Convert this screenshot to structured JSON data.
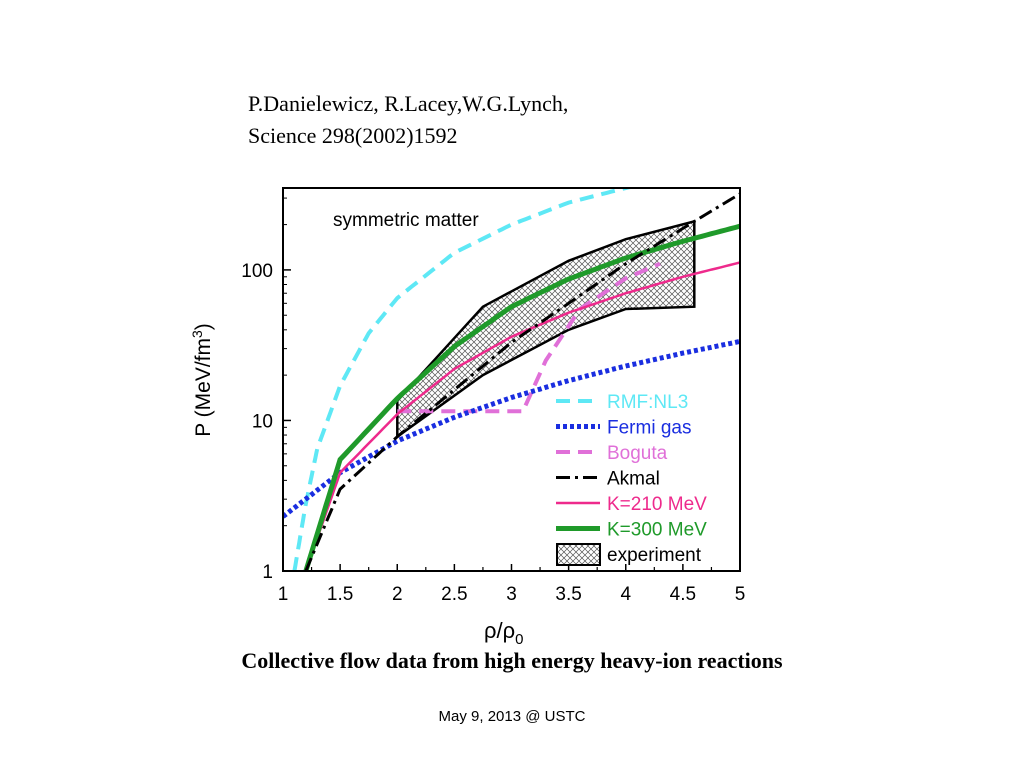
{
  "slide": {
    "citation_line1": "P.Danielewicz, R.Lacey,W.G.Lynch,",
    "citation_line2": "Science 298(2002)1592",
    "caption": "Collective flow data from high energy heavy-ion reactions",
    "footer": "May 9, 2013 @ USTC"
  },
  "chart_data": {
    "type": "line",
    "annotation": "symmetric matter",
    "xlabel_base": "ρ/ρ",
    "xlabel_sub": "0",
    "ylabel": "P (MeV/fm",
    "ylabel_sup": "3",
    "ylabel_close": ")",
    "xlim": [
      1,
      5
    ],
    "ylim": [
      1,
      350
    ],
    "yscale": "log",
    "xticks": [
      "1",
      "1.5",
      "2",
      "2.5",
      "3",
      "3.5",
      "4",
      "4.5",
      "5"
    ],
    "yticks": [
      {
        "value": 1,
        "label": "1"
      },
      {
        "value": 10,
        "label": "10"
      },
      {
        "value": 100,
        "label": "100"
      }
    ],
    "legend_position": "lower-right",
    "series": [
      {
        "name": "RMF:NL3",
        "color": "#5ee8f5",
        "style": "dashed",
        "x": [
          1.1,
          1.2,
          1.3,
          1.5,
          1.75,
          2.0,
          2.5,
          3.0,
          3.5,
          4.0,
          4.2
        ],
        "y": [
          1.0,
          2.8,
          6.5,
          17,
          38,
          65,
          130,
          200,
          280,
          350,
          375
        ]
      },
      {
        "name": "Fermi gas",
        "color": "#1a2ee0",
        "style": "dotted",
        "x": [
          1.0,
          1.5,
          2.0,
          2.5,
          3.0,
          3.5,
          4.0,
          4.5,
          5.0
        ],
        "y": [
          2.3,
          4.5,
          7.3,
          10.5,
          14.2,
          18.4,
          23.0,
          28.0,
          33.5
        ]
      },
      {
        "name": "Boguta",
        "color": "#e070d8",
        "style": "dashed",
        "x": [
          2.0,
          2.5,
          3.1,
          3.3,
          3.6,
          4.0,
          4.3
        ],
        "y": [
          11.5,
          11.5,
          11.5,
          25,
          55,
          88,
          110
        ]
      },
      {
        "name": "Akmal",
        "color": "#000000",
        "style": "dashdot",
        "x": [
          1.2,
          1.5,
          2.0,
          2.5,
          3.0,
          3.5,
          4.0,
          4.6,
          5.0
        ],
        "y": [
          1.0,
          3.5,
          7.8,
          16,
          33,
          60,
          110,
          210,
          320
        ]
      },
      {
        "name": "K=210 MeV",
        "color": "#ee2a8c",
        "style": "solid",
        "x": [
          1.2,
          1.5,
          2.0,
          2.5,
          3.0,
          3.5,
          4.0,
          4.5,
          5.0
        ],
        "y": [
          1.0,
          4.5,
          11,
          22,
          36,
          52,
          70,
          90,
          112
        ]
      },
      {
        "name": "K=300 MeV",
        "color": "#1f9a2a",
        "style": "solid-thick",
        "x": [
          1.2,
          1.5,
          2.0,
          2.5,
          3.0,
          3.5,
          4.0,
          4.5,
          5.0
        ],
        "y": [
          1.0,
          5.5,
          14,
          31,
          57,
          87,
          120,
          155,
          195
        ]
      }
    ],
    "experiment": {
      "name": "experiment",
      "upper": {
        "x": [
          2.0,
          2.75,
          3.5,
          4.0,
          4.6
        ],
        "y": [
          13.5,
          57,
          115,
          160,
          210
        ]
      },
      "lower": {
        "x": [
          2.0,
          2.75,
          3.5,
          4.0,
          4.6
        ],
        "y": [
          7.8,
          20,
          40,
          55,
          57
        ]
      }
    }
  }
}
